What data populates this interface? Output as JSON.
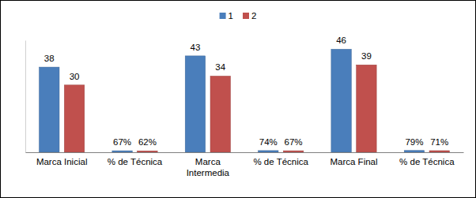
{
  "chart_data": {
    "type": "bar",
    "categories": [
      "Marca Inicial",
      "% de Técnica",
      "Marca Intermedia",
      "% de Técnica",
      "Marca Final",
      "% de Técnica"
    ],
    "series": [
      {
        "name": "1",
        "color": "#4a7ebb",
        "values": [
          38,
          0.67,
          43,
          0.74,
          46,
          0.79
        ],
        "value_labels": [
          "38",
          "67%",
          "43",
          "74%",
          "46",
          "79%"
        ]
      },
      {
        "name": "2",
        "color": "#c0504d",
        "values": [
          30,
          0.62,
          34,
          0.67,
          39,
          0.71
        ],
        "value_labels": [
          "30",
          "62%",
          "34",
          "67%",
          "39",
          "71%"
        ]
      }
    ],
    "ylim": [
      0,
      50
    ],
    "yticks": [],
    "tick_labels": "x",
    "data_labels": true,
    "legend": "top",
    "grid": false
  }
}
